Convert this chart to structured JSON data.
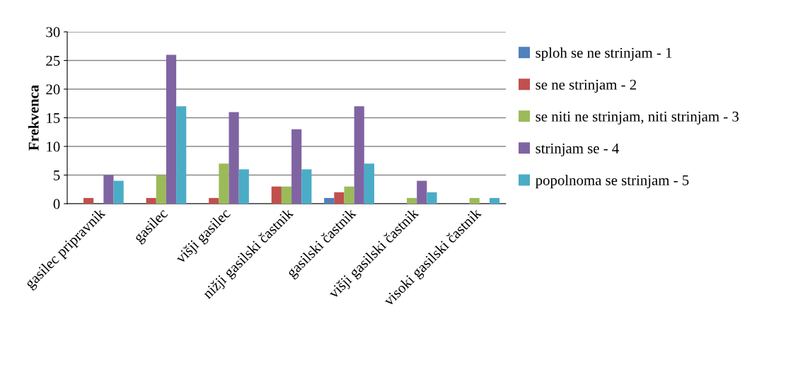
{
  "chart_data": {
    "type": "bar",
    "ylabel": "Frekvenca",
    "categories": [
      "gasilec pripravnik",
      "gasilec",
      "višji gasilec",
      "nižji gasilski častnik",
      "gasilski častnik",
      "višji gasilski častnik",
      "visoki gasilski častnik"
    ],
    "series": [
      {
        "name": "sploh se ne strinjam - 1",
        "color": "#4f81bd",
        "values": [
          0,
          0,
          0,
          0,
          1,
          0,
          0
        ]
      },
      {
        "name": "se ne strinjam - 2",
        "color": "#c0504d",
        "values": [
          1,
          1,
          1,
          3,
          2,
          0,
          0
        ]
      },
      {
        "name": "se niti ne strinjam, niti strinjam - 3",
        "color": "#9bbb59",
        "values": [
          0,
          5,
          7,
          3,
          3,
          1,
          1
        ]
      },
      {
        "name": "strinjam se - 4",
        "color": "#8064a2",
        "values": [
          5,
          26,
          16,
          13,
          17,
          4,
          0
        ]
      },
      {
        "name": "popolnoma se strinjam - 5",
        "color": "#4bacc6",
        "values": [
          4,
          17,
          6,
          6,
          7,
          2,
          1
        ]
      }
    ],
    "ylim": [
      0,
      30
    ],
    "yticks": [
      0,
      5,
      10,
      15,
      20,
      25,
      30
    ],
    "grid": "y",
    "legend": "right"
  }
}
